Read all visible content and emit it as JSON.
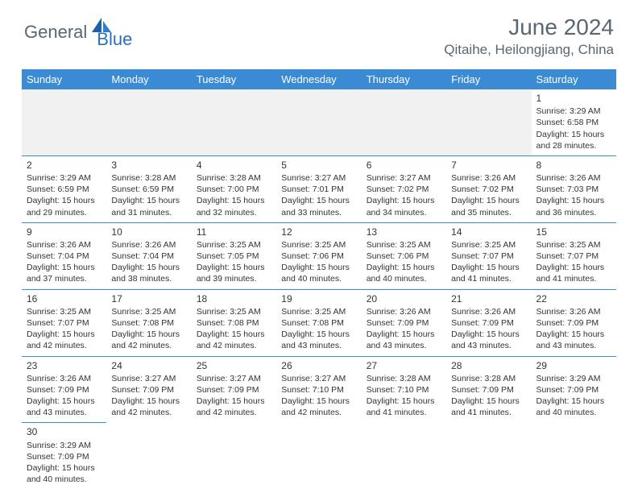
{
  "brand": {
    "name_part1": "General",
    "name_part2": "Blue"
  },
  "title": "June 2024",
  "location": "Qitaihe, Heilongjiang, China",
  "colors": {
    "header_bg": "#3b8bd4",
    "header_text": "#ffffff",
    "title_text": "#5a6670",
    "brand_dark": "#5a6670",
    "brand_blue": "#2c6fbb",
    "cell_border": "#3b8bd4",
    "body_text": "#333333",
    "empty_bg": "#f1f1f1"
  },
  "weekdays": [
    "Sunday",
    "Monday",
    "Tuesday",
    "Wednesday",
    "Thursday",
    "Friday",
    "Saturday"
  ],
  "weeks": [
    [
      null,
      null,
      null,
      null,
      null,
      null,
      {
        "d": "1",
        "sr": "Sunrise: 3:29 AM",
        "ss": "Sunset: 6:58 PM",
        "dl1": "Daylight: 15 hours",
        "dl2": "and 28 minutes."
      }
    ],
    [
      {
        "d": "2",
        "sr": "Sunrise: 3:29 AM",
        "ss": "Sunset: 6:59 PM",
        "dl1": "Daylight: 15 hours",
        "dl2": "and 29 minutes."
      },
      {
        "d": "3",
        "sr": "Sunrise: 3:28 AM",
        "ss": "Sunset: 6:59 PM",
        "dl1": "Daylight: 15 hours",
        "dl2": "and 31 minutes."
      },
      {
        "d": "4",
        "sr": "Sunrise: 3:28 AM",
        "ss": "Sunset: 7:00 PM",
        "dl1": "Daylight: 15 hours",
        "dl2": "and 32 minutes."
      },
      {
        "d": "5",
        "sr": "Sunrise: 3:27 AM",
        "ss": "Sunset: 7:01 PM",
        "dl1": "Daylight: 15 hours",
        "dl2": "and 33 minutes."
      },
      {
        "d": "6",
        "sr": "Sunrise: 3:27 AM",
        "ss": "Sunset: 7:02 PM",
        "dl1": "Daylight: 15 hours",
        "dl2": "and 34 minutes."
      },
      {
        "d": "7",
        "sr": "Sunrise: 3:26 AM",
        "ss": "Sunset: 7:02 PM",
        "dl1": "Daylight: 15 hours",
        "dl2": "and 35 minutes."
      },
      {
        "d": "8",
        "sr": "Sunrise: 3:26 AM",
        "ss": "Sunset: 7:03 PM",
        "dl1": "Daylight: 15 hours",
        "dl2": "and 36 minutes."
      }
    ],
    [
      {
        "d": "9",
        "sr": "Sunrise: 3:26 AM",
        "ss": "Sunset: 7:04 PM",
        "dl1": "Daylight: 15 hours",
        "dl2": "and 37 minutes."
      },
      {
        "d": "10",
        "sr": "Sunrise: 3:26 AM",
        "ss": "Sunset: 7:04 PM",
        "dl1": "Daylight: 15 hours",
        "dl2": "and 38 minutes."
      },
      {
        "d": "11",
        "sr": "Sunrise: 3:25 AM",
        "ss": "Sunset: 7:05 PM",
        "dl1": "Daylight: 15 hours",
        "dl2": "and 39 minutes."
      },
      {
        "d": "12",
        "sr": "Sunrise: 3:25 AM",
        "ss": "Sunset: 7:06 PM",
        "dl1": "Daylight: 15 hours",
        "dl2": "and 40 minutes."
      },
      {
        "d": "13",
        "sr": "Sunrise: 3:25 AM",
        "ss": "Sunset: 7:06 PM",
        "dl1": "Daylight: 15 hours",
        "dl2": "and 40 minutes."
      },
      {
        "d": "14",
        "sr": "Sunrise: 3:25 AM",
        "ss": "Sunset: 7:07 PM",
        "dl1": "Daylight: 15 hours",
        "dl2": "and 41 minutes."
      },
      {
        "d": "15",
        "sr": "Sunrise: 3:25 AM",
        "ss": "Sunset: 7:07 PM",
        "dl1": "Daylight: 15 hours",
        "dl2": "and 41 minutes."
      }
    ],
    [
      {
        "d": "16",
        "sr": "Sunrise: 3:25 AM",
        "ss": "Sunset: 7:07 PM",
        "dl1": "Daylight: 15 hours",
        "dl2": "and 42 minutes."
      },
      {
        "d": "17",
        "sr": "Sunrise: 3:25 AM",
        "ss": "Sunset: 7:08 PM",
        "dl1": "Daylight: 15 hours",
        "dl2": "and 42 minutes."
      },
      {
        "d": "18",
        "sr": "Sunrise: 3:25 AM",
        "ss": "Sunset: 7:08 PM",
        "dl1": "Daylight: 15 hours",
        "dl2": "and 42 minutes."
      },
      {
        "d": "19",
        "sr": "Sunrise: 3:25 AM",
        "ss": "Sunset: 7:08 PM",
        "dl1": "Daylight: 15 hours",
        "dl2": "and 43 minutes."
      },
      {
        "d": "20",
        "sr": "Sunrise: 3:26 AM",
        "ss": "Sunset: 7:09 PM",
        "dl1": "Daylight: 15 hours",
        "dl2": "and 43 minutes."
      },
      {
        "d": "21",
        "sr": "Sunrise: 3:26 AM",
        "ss": "Sunset: 7:09 PM",
        "dl1": "Daylight: 15 hours",
        "dl2": "and 43 minutes."
      },
      {
        "d": "22",
        "sr": "Sunrise: 3:26 AM",
        "ss": "Sunset: 7:09 PM",
        "dl1": "Daylight: 15 hours",
        "dl2": "and 43 minutes."
      }
    ],
    [
      {
        "d": "23",
        "sr": "Sunrise: 3:26 AM",
        "ss": "Sunset: 7:09 PM",
        "dl1": "Daylight: 15 hours",
        "dl2": "and 43 minutes."
      },
      {
        "d": "24",
        "sr": "Sunrise: 3:27 AM",
        "ss": "Sunset: 7:09 PM",
        "dl1": "Daylight: 15 hours",
        "dl2": "and 42 minutes."
      },
      {
        "d": "25",
        "sr": "Sunrise: 3:27 AM",
        "ss": "Sunset: 7:09 PM",
        "dl1": "Daylight: 15 hours",
        "dl2": "and 42 minutes."
      },
      {
        "d": "26",
        "sr": "Sunrise: 3:27 AM",
        "ss": "Sunset: 7:10 PM",
        "dl1": "Daylight: 15 hours",
        "dl2": "and 42 minutes."
      },
      {
        "d": "27",
        "sr": "Sunrise: 3:28 AM",
        "ss": "Sunset: 7:10 PM",
        "dl1": "Daylight: 15 hours",
        "dl2": "and 41 minutes."
      },
      {
        "d": "28",
        "sr": "Sunrise: 3:28 AM",
        "ss": "Sunset: 7:09 PM",
        "dl1": "Daylight: 15 hours",
        "dl2": "and 41 minutes."
      },
      {
        "d": "29",
        "sr": "Sunrise: 3:29 AM",
        "ss": "Sunset: 7:09 PM",
        "dl1": "Daylight: 15 hours",
        "dl2": "and 40 minutes."
      }
    ],
    [
      {
        "d": "30",
        "sr": "Sunrise: 3:29 AM",
        "ss": "Sunset: 7:09 PM",
        "dl1": "Daylight: 15 hours",
        "dl2": "and 40 minutes."
      },
      null,
      null,
      null,
      null,
      null,
      null
    ]
  ]
}
